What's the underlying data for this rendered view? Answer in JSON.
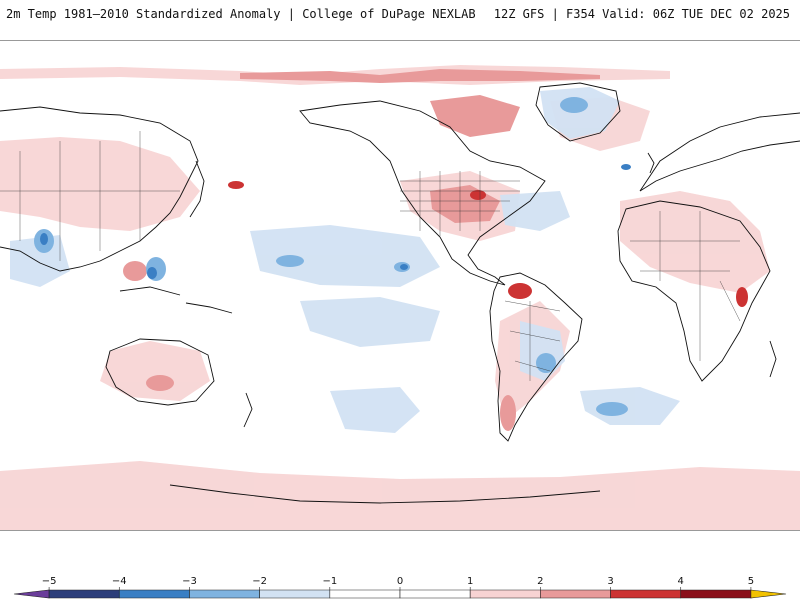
{
  "header": {
    "title": "2m Temp 1981–2010 Standardized Anomaly | College of DuPage NEXLAB",
    "run_info": "12Z GFS | F354 Valid: 06Z TUE DEC 02 2025"
  },
  "colorbar": {
    "ticks": [
      {
        "label": "−5",
        "value": -5
      },
      {
        "label": "−4",
        "value": -4
      },
      {
        "label": "−3",
        "value": -3
      },
      {
        "label": "−2",
        "value": -2
      },
      {
        "label": "−1",
        "value": -1
      },
      {
        "label": "0",
        "value": 0
      },
      {
        "label": "1",
        "value": 1
      },
      {
        "label": "2",
        "value": 2
      },
      {
        "label": "3",
        "value": 3
      },
      {
        "label": "4",
        "value": 4
      },
      {
        "label": "5",
        "value": 5
      }
    ],
    "segments": [
      {
        "from": -5.5,
        "to": -5,
        "color": "#6a3d9a"
      },
      {
        "from": -5,
        "to": -4,
        "color": "#2c3e7a"
      },
      {
        "from": -4,
        "to": -3,
        "color": "#3a7fc4"
      },
      {
        "from": -3,
        "to": -2,
        "color": "#7fb3e0"
      },
      {
        "from": -2,
        "to": -1,
        "color": "#d2e2f3"
      },
      {
        "from": -1,
        "to": 0,
        "color": "#ffffff"
      },
      {
        "from": 0,
        "to": 1,
        "color": "#ffffff"
      },
      {
        "from": 1,
        "to": 2,
        "color": "#f7d3d3"
      },
      {
        "from": 2,
        "to": 3,
        "color": "#e89a9a"
      },
      {
        "from": 3,
        "to": 4,
        "color": "#cc3333"
      },
      {
        "from": 4,
        "to": 5,
        "color": "#8a0f1a"
      },
      {
        "from": 5,
        "to": 5.5,
        "color": "#f2c200"
      }
    ]
  }
}
